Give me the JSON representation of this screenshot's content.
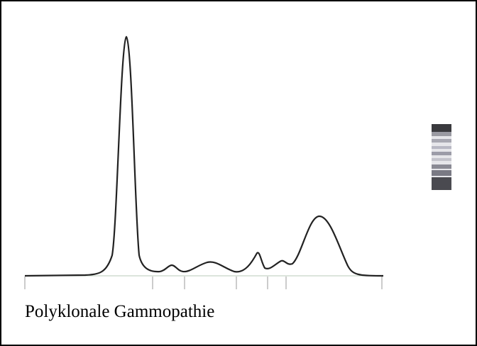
{
  "caption": "Polyklonale Gammopathie"
}
